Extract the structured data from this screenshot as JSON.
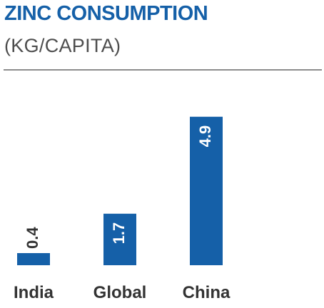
{
  "header": {
    "title": "ZINC CONSUMPTION",
    "subtitle": "(KG/CAPITA)"
  },
  "colors": {
    "title": "#1560a8",
    "bar": "#1560a8",
    "subtitle": "#4d4d4d",
    "rule": "#8c8c8c",
    "bar_label": "#ffffff",
    "outside_label": "#333333",
    "category_label": "#333333"
  },
  "chart_data": {
    "type": "bar",
    "title": "ZINC CONSUMPTION",
    "subtitle": "(KG/CAPITA)",
    "categories": [
      "India",
      "Global",
      "China"
    ],
    "values": [
      0.4,
      1.7,
      4.9
    ],
    "data_labels": [
      "0.4",
      "1.7",
      "4.9"
    ],
    "xlabel": "",
    "ylabel": "",
    "ylim": [
      0,
      5.5
    ],
    "grid": false,
    "legend": "none"
  }
}
